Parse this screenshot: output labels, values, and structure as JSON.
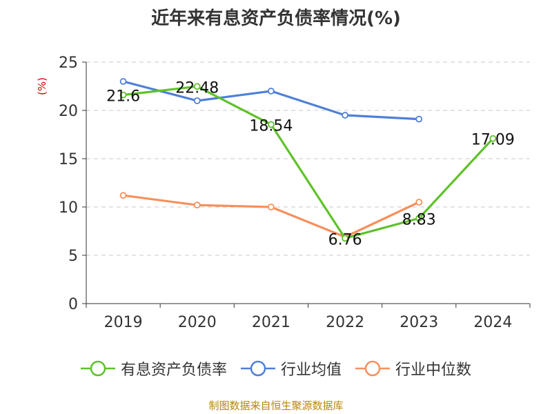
{
  "chart_data": {
    "type": "line",
    "title": "近年来有息资产负债率情况(%)",
    "ylabel": "(%)",
    "xlabel": "",
    "ylim": [
      0,
      25
    ],
    "yticks": [
      0,
      5,
      10,
      15,
      20,
      25
    ],
    "categories": [
      "2019",
      "2020",
      "2021",
      "2022",
      "2023",
      "2024"
    ],
    "grid": true,
    "legend_position": "bottom",
    "series": [
      {
        "name": "有息资产负债率",
        "color": "#5ec229",
        "values": [
          21.6,
          22.48,
          18.54,
          6.76,
          8.83,
          17.09
        ],
        "labels": [
          "21.6",
          "22.48",
          "18.54",
          "6.76",
          "8.83",
          "17.09"
        ]
      },
      {
        "name": "行业均值",
        "color": "#4f7fd8",
        "values": [
          23.0,
          21.0,
          22.0,
          19.5,
          19.1,
          null
        ]
      },
      {
        "name": "行业中位数",
        "color": "#f78f5c",
        "values": [
          11.2,
          10.2,
          10.0,
          6.9,
          10.5,
          null
        ]
      }
    ]
  },
  "source_note": "制图数据来自恒生聚源数据库",
  "colors": {
    "axis": "#333333",
    "grid": "#c8c8c8",
    "ylabel": "#cc0000"
  }
}
